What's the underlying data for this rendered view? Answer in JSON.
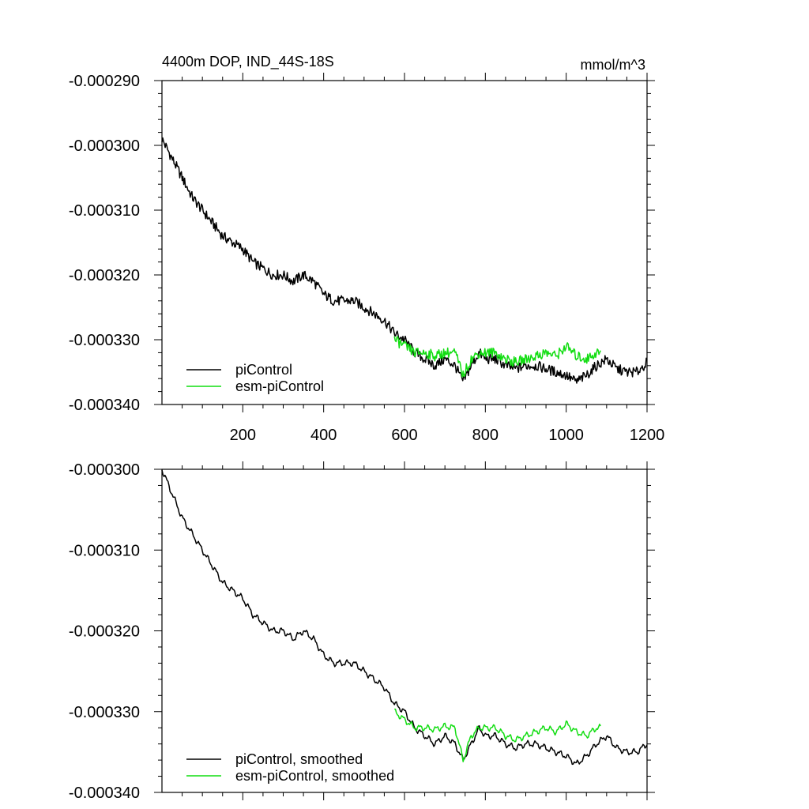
{
  "chart_data": [
    {
      "type": "line",
      "title": "4400m DOP, IND_44S-18S",
      "units": "mmol/m^3",
      "xlabel": "",
      "ylabel": "",
      "xlim": [
        0,
        1200
      ],
      "ylim": [
        -0.00034,
        -0.00029
      ],
      "x_ticks": [
        200,
        400,
        600,
        800,
        1000,
        1200
      ],
      "x_tick_labels": [
        "200",
        "400",
        "600",
        "800",
        "1000",
        "1200"
      ],
      "y_ticks": [
        -0.00034,
        -0.00033,
        -0.00032,
        -0.00031,
        -0.0003,
        -0.00029
      ],
      "y_tick_labels": [
        "-0.000340",
        "-0.000330",
        "-0.000320",
        "-0.000310",
        "-0.000300",
        "-0.000290"
      ],
      "legend_position": "bottom-left",
      "series": [
        {
          "name": "piControl",
          "color": "#000000",
          "x": [
            0,
            25,
            50,
            75,
            100,
            125,
            150,
            175,
            200,
            225,
            250,
            275,
            300,
            325,
            350,
            375,
            400,
            425,
            450,
            475,
            500,
            525,
            550,
            575,
            600,
            625,
            650,
            675,
            700,
            725,
            745,
            765,
            785,
            800,
            825,
            850,
            875,
            900,
            925,
            950,
            975,
            1000,
            1025,
            1050,
            1075,
            1100,
            1125,
            1150,
            1175,
            1200
          ],
          "y": [
            -0.000299,
            -0.000302,
            -0.000305,
            -0.000308,
            -0.00031,
            -0.000312,
            -0.000314,
            -0.000315,
            -0.000316,
            -0.000318,
            -0.000319,
            -0.00032,
            -0.00032,
            -0.000321,
            -0.00032,
            -0.000321,
            -0.000323,
            -0.000324,
            -0.000324,
            -0.000324,
            -0.000325,
            -0.000326,
            -0.000327,
            -0.000329,
            -0.00033,
            -0.000332,
            -0.000333,
            -0.000334,
            -0.000333,
            -0.000334,
            -0.0003365,
            -0.000334,
            -0.000332,
            -0.000333,
            -0.000333,
            -0.000334,
            -0.0003345,
            -0.000334,
            -0.000334,
            -0.0003345,
            -0.000335,
            -0.0003355,
            -0.0003365,
            -0.0003355,
            -0.000334,
            -0.000333,
            -0.0003345,
            -0.000335,
            -0.000335,
            -0.0003335
          ]
        },
        {
          "name": "esm-piControl",
          "color": "#11dd11",
          "x": [
            575,
            600,
            625,
            650,
            675,
            700,
            725,
            745,
            765,
            785,
            800,
            825,
            850,
            875,
            900,
            925,
            950,
            975,
            1000,
            1025,
            1050,
            1075,
            1085
          ],
          "y": [
            -0.00033,
            -0.000331,
            -0.000332,
            -0.000332,
            -0.0003325,
            -0.000332,
            -0.000332,
            -0.0003355,
            -0.000333,
            -0.000332,
            -0.000332,
            -0.000332,
            -0.000333,
            -0.0003335,
            -0.000333,
            -0.0003325,
            -0.000332,
            -0.0003325,
            -0.000331,
            -0.0003325,
            -0.000333,
            -0.000332,
            -0.000332
          ]
        }
      ]
    },
    {
      "type": "line",
      "title": "",
      "xlabel": "",
      "ylabel": "",
      "xlim": [
        0,
        1200
      ],
      "ylim": [
        -0.00034,
        -0.0003
      ],
      "x_ticks": [
        200,
        400,
        600,
        800,
        1000,
        1200
      ],
      "x_tick_labels": [],
      "y_ticks": [
        -0.00034,
        -0.00033,
        -0.00032,
        -0.00031,
        -0.0003
      ],
      "y_tick_labels": [
        "-0.000340",
        "-0.000330",
        "-0.000320",
        "-0.000310",
        "-0.000300"
      ],
      "legend_position": "bottom-left",
      "series": [
        {
          "name": "piControl, smoothed",
          "color": "#000000",
          "x": [
            0,
            25,
            50,
            75,
            100,
            125,
            150,
            175,
            200,
            225,
            250,
            275,
            300,
            325,
            350,
            375,
            400,
            425,
            450,
            475,
            500,
            525,
            550,
            575,
            600,
            625,
            650,
            675,
            700,
            725,
            745,
            765,
            785,
            800,
            825,
            850,
            875,
            900,
            925,
            950,
            975,
            1000,
            1025,
            1050,
            1075,
            1100,
            1125,
            1150,
            1175,
            1200
          ],
          "y": [
            -0.0003,
            -0.000303,
            -0.000306,
            -0.000308,
            -0.00031,
            -0.000312,
            -0.000314,
            -0.000315,
            -0.000316,
            -0.000318,
            -0.000319,
            -0.00032,
            -0.00032,
            -0.000321,
            -0.00032,
            -0.000321,
            -0.000323,
            -0.000324,
            -0.000324,
            -0.000324,
            -0.000325,
            -0.000326,
            -0.000327,
            -0.000329,
            -0.00033,
            -0.000332,
            -0.000333,
            -0.000334,
            -0.000333,
            -0.000334,
            -0.000336,
            -0.000334,
            -0.000332,
            -0.000333,
            -0.000333,
            -0.000334,
            -0.0003345,
            -0.000334,
            -0.000334,
            -0.0003345,
            -0.000335,
            -0.0003355,
            -0.0003365,
            -0.0003355,
            -0.000334,
            -0.000333,
            -0.0003345,
            -0.000335,
            -0.000335,
            -0.000334
          ]
        },
        {
          "name": "esm-piControl, smoothed",
          "color": "#11dd11",
          "x": [
            575,
            600,
            625,
            650,
            675,
            700,
            725,
            745,
            765,
            785,
            800,
            825,
            850,
            875,
            900,
            925,
            950,
            975,
            1000,
            1025,
            1050,
            1075,
            1085
          ],
          "y": [
            -0.00033,
            -0.000331,
            -0.000332,
            -0.000332,
            -0.0003322,
            -0.0003318,
            -0.000332,
            -0.000336,
            -0.000333,
            -0.000332,
            -0.000332,
            -0.000332,
            -0.000333,
            -0.0003335,
            -0.000333,
            -0.0003325,
            -0.000332,
            -0.0003325,
            -0.0003315,
            -0.0003325,
            -0.000333,
            -0.000332,
            -0.000332
          ]
        }
      ]
    }
  ]
}
